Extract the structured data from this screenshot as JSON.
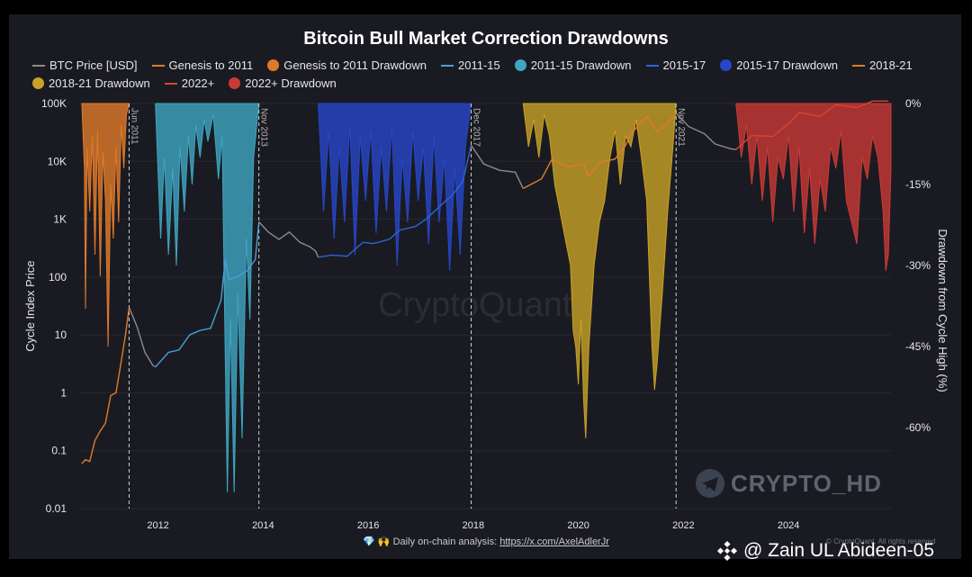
{
  "header": {
    "title": "Bitcoin Bull Market Correction Drawdowns"
  },
  "legend": [
    {
      "label": "BTC Price [USD]",
      "kind": "line",
      "color": "#8c8c8c"
    },
    {
      "label": "Genesis to 2011",
      "kind": "line",
      "color": "#e07a2b"
    },
    {
      "label": "Genesis to 2011 Drawdown",
      "kind": "dot",
      "color": "#e07a2b"
    },
    {
      "label": "2011-15",
      "kind": "line",
      "color": "#4a9fd6"
    },
    {
      "label": "2011-15 Drawdown",
      "kind": "dot",
      "color": "#3fa6c2"
    },
    {
      "label": "2015-17",
      "kind": "line",
      "color": "#2f62d6"
    },
    {
      "label": "2015-17 Drawdown",
      "kind": "dot",
      "color": "#2746c9"
    },
    {
      "label": "2018-21",
      "kind": "line",
      "color": "#e07a2b"
    },
    {
      "label": "2018-21 Drawdown",
      "kind": "dot",
      "color": "#c9a227"
    },
    {
      "label": "2022+",
      "kind": "line",
      "color": "#d6452f"
    },
    {
      "label": "2022+ Drawdown",
      "kind": "dot",
      "color": "#c93a36"
    }
  ],
  "chart_data": {
    "type": "line",
    "title": "Bitcoin Bull Market Correction Drawdowns",
    "ylabel": "Cycle Index Price",
    "y2label": "Drawdown from Cycle High (%)",
    "yscale": "log",
    "ylim": [
      0.01,
      100000
    ],
    "y_ticks": [
      0.01,
      0.1,
      1,
      10,
      100,
      1000,
      10000,
      100000
    ],
    "y_tick_labels": [
      "0.01",
      "0.1",
      "1",
      "10",
      "100",
      "1K",
      "10K",
      "100K"
    ],
    "y2lim": [
      -75,
      0
    ],
    "y2_ticks": [
      0,
      -15,
      -30,
      -45,
      -60
    ],
    "y2_tick_labels": [
      "0%",
      "-15%",
      "-30%",
      "-45%",
      "-60%"
    ],
    "xlim": [
      2010.5,
      2025.95
    ],
    "x_ticks": [
      2012,
      2014,
      2016,
      2018,
      2020,
      2022,
      2024
    ],
    "x_tick_labels": [
      "2012",
      "2014",
      "2016",
      "2018",
      "2020",
      "2022",
      "2024"
    ],
    "cycle_markers": [
      {
        "x": 2011.45,
        "label": "Jun 2011"
      },
      {
        "x": 2013.92,
        "label": "Nov 2013"
      },
      {
        "x": 2017.96,
        "label": "Dec 2017"
      },
      {
        "x": 2021.86,
        "label": "Nov 2021"
      }
    ],
    "price_series": [
      {
        "name": "Genesis to 2011",
        "color": "#e07a2b",
        "points": [
          [
            2010.55,
            0.06
          ],
          [
            2010.62,
            0.07
          ],
          [
            2010.7,
            0.065
          ],
          [
            2010.8,
            0.15
          ],
          [
            2010.9,
            0.22
          ],
          [
            2011.0,
            0.3
          ],
          [
            2011.1,
            0.9
          ],
          [
            2011.2,
            1.0
          ],
          [
            2011.3,
            3.5
          ],
          [
            2011.38,
            10
          ],
          [
            2011.45,
            30
          ]
        ]
      },
      {
        "name": "BTC Price [USD]",
        "color": "#8c8c8c",
        "points": [
          [
            2011.45,
            30
          ],
          [
            2011.6,
            14
          ],
          [
            2011.75,
            5
          ],
          [
            2011.9,
            3
          ],
          [
            2011.95,
            2.8
          ]
        ]
      },
      {
        "name": "2011-15",
        "color": "#4a9fd6",
        "points": [
          [
            2011.95,
            2.8
          ],
          [
            2012.2,
            5
          ],
          [
            2012.4,
            5.5
          ],
          [
            2012.6,
            10
          ],
          [
            2012.8,
            12
          ],
          [
            2013.0,
            13
          ],
          [
            2013.2,
            40
          ],
          [
            2013.28,
            200
          ],
          [
            2013.35,
            90
          ],
          [
            2013.5,
            100
          ],
          [
            2013.7,
            130
          ],
          [
            2013.85,
            200
          ],
          [
            2013.92,
            900
          ]
        ]
      },
      {
        "name": "BTC Price [USD]",
        "color": "#8c8c8c",
        "points": [
          [
            2013.92,
            900
          ],
          [
            2014.1,
            600
          ],
          [
            2014.3,
            450
          ],
          [
            2014.5,
            600
          ],
          [
            2014.7,
            400
          ],
          [
            2014.9,
            330
          ],
          [
            2015.0,
            280
          ],
          [
            2015.05,
            220
          ]
        ]
      },
      {
        "name": "2015-17",
        "color": "#2f62d6",
        "points": [
          [
            2015.05,
            220
          ],
          [
            2015.3,
            240
          ],
          [
            2015.6,
            230
          ],
          [
            2015.9,
            400
          ],
          [
            2016.1,
            380
          ],
          [
            2016.4,
            450
          ],
          [
            2016.6,
            650
          ],
          [
            2016.9,
            750
          ],
          [
            2017.1,
            1000
          ],
          [
            2017.4,
            1800
          ],
          [
            2017.6,
            2600
          ],
          [
            2017.8,
            4500
          ],
          [
            2017.96,
            19000
          ]
        ]
      },
      {
        "name": "BTC Price [USD]",
        "color": "#8c8c8c",
        "points": [
          [
            2017.96,
            19000
          ],
          [
            2018.2,
            9000
          ],
          [
            2018.5,
            7000
          ],
          [
            2018.8,
            6500
          ],
          [
            2018.95,
            3400
          ]
        ]
      },
      {
        "name": "2018-21",
        "color": "#e07a2b",
        "points": [
          [
            2018.95,
            3400
          ],
          [
            2019.3,
            5000
          ],
          [
            2019.5,
            11000
          ],
          [
            2019.8,
            8000
          ],
          [
            2020.1,
            9000
          ],
          [
            2020.2,
            5500
          ],
          [
            2020.4,
            9500
          ],
          [
            2020.7,
            11000
          ],
          [
            2020.9,
            19000
          ],
          [
            2021.0,
            30000
          ],
          [
            2021.3,
            60000
          ],
          [
            2021.5,
            33000
          ],
          [
            2021.7,
            45000
          ],
          [
            2021.86,
            68000
          ]
        ]
      },
      {
        "name": "BTC Price [USD]",
        "color": "#8c8c8c",
        "points": [
          [
            2021.86,
            68000
          ],
          [
            2022.1,
            40000
          ],
          [
            2022.4,
            30000
          ],
          [
            2022.6,
            20000
          ],
          [
            2022.9,
            16500
          ],
          [
            2023.0,
            16000
          ]
        ]
      },
      {
        "name": "2022+",
        "color": "#d6452f",
        "points": [
          [
            2023.0,
            16000
          ],
          [
            2023.3,
            28000
          ],
          [
            2023.7,
            27000
          ],
          [
            2024.0,
            45000
          ],
          [
            2024.2,
            70000
          ],
          [
            2024.6,
            60000
          ],
          [
            2024.9,
            95000
          ],
          [
            2025.3,
            85000
          ],
          [
            2025.6,
            110000
          ],
          [
            2025.9,
            110000
          ]
        ]
      }
    ],
    "drawdowns": [
      {
        "name": "Genesis to 2011 Drawdown",
        "color": "#e07a2b",
        "points": [
          [
            2010.55,
            0
          ],
          [
            2010.6,
            -12
          ],
          [
            2010.62,
            -38
          ],
          [
            2010.65,
            -8
          ],
          [
            2010.7,
            -20
          ],
          [
            2010.75,
            -6
          ],
          [
            2010.8,
            -28
          ],
          [
            2010.85,
            -5
          ],
          [
            2010.9,
            -32
          ],
          [
            2010.95,
            -9
          ],
          [
            2011.0,
            -18
          ],
          [
            2011.05,
            -45
          ],
          [
            2011.1,
            -15
          ],
          [
            2011.15,
            -25
          ],
          [
            2011.2,
            -8
          ],
          [
            2011.25,
            -22
          ],
          [
            2011.3,
            -4
          ],
          [
            2011.35,
            -12
          ],
          [
            2011.4,
            -2
          ],
          [
            2011.45,
            0
          ]
        ]
      },
      {
        "name": "2011-15 Drawdown",
        "color": "#3fa6c2",
        "points": [
          [
            2011.95,
            0
          ],
          [
            2012.05,
            -25
          ],
          [
            2012.12,
            -10
          ],
          [
            2012.2,
            -28
          ],
          [
            2012.28,
            -12
          ],
          [
            2012.35,
            -30
          ],
          [
            2012.42,
            -8
          ],
          [
            2012.5,
            -20
          ],
          [
            2012.58,
            -6
          ],
          [
            2012.65,
            -15
          ],
          [
            2012.72,
            -4
          ],
          [
            2012.8,
            -10
          ],
          [
            2012.88,
            -3
          ],
          [
            2012.95,
            -7
          ],
          [
            2013.05,
            -2
          ],
          [
            2013.15,
            -14
          ],
          [
            2013.22,
            -6
          ],
          [
            2013.28,
            -47
          ],
          [
            2013.32,
            -72
          ],
          [
            2013.38,
            -40
          ],
          [
            2013.45,
            -72
          ],
          [
            2013.52,
            -35
          ],
          [
            2013.6,
            -62
          ],
          [
            2013.68,
            -25
          ],
          [
            2013.75,
            -40
          ],
          [
            2013.82,
            -10
          ],
          [
            2013.88,
            -4
          ],
          [
            2013.92,
            0
          ]
        ]
      },
      {
        "name": "2015-17 Drawdown",
        "color": "#2746c9",
        "points": [
          [
            2015.05,
            0
          ],
          [
            2015.15,
            -20
          ],
          [
            2015.25,
            -5
          ],
          [
            2015.35,
            -25
          ],
          [
            2015.45,
            -8
          ],
          [
            2015.55,
            -22
          ],
          [
            2015.65,
            -4
          ],
          [
            2015.75,
            -28
          ],
          [
            2015.85,
            -6
          ],
          [
            2015.95,
            -18
          ],
          [
            2016.05,
            -5
          ],
          [
            2016.15,
            -24
          ],
          [
            2016.25,
            -8
          ],
          [
            2016.35,
            -20
          ],
          [
            2016.45,
            -4
          ],
          [
            2016.55,
            -30
          ],
          [
            2016.65,
            -10
          ],
          [
            2016.75,
            -22
          ],
          [
            2016.85,
            -5
          ],
          [
            2016.95,
            -18
          ],
          [
            2017.05,
            -8
          ],
          [
            2017.15,
            -26
          ],
          [
            2017.25,
            -6
          ],
          [
            2017.35,
            -22
          ],
          [
            2017.45,
            -10
          ],
          [
            2017.55,
            -31
          ],
          [
            2017.65,
            -12
          ],
          [
            2017.75,
            -28
          ],
          [
            2017.85,
            -8
          ],
          [
            2017.96,
            0
          ]
        ]
      },
      {
        "name": "2018-21 Drawdown",
        "color": "#c9a227",
        "points": [
          [
            2018.95,
            0
          ],
          [
            2019.05,
            -8
          ],
          [
            2019.15,
            -3
          ],
          [
            2019.25,
            -10
          ],
          [
            2019.35,
            -2
          ],
          [
            2019.45,
            -6
          ],
          [
            2019.55,
            -15
          ],
          [
            2019.65,
            -20
          ],
          [
            2019.75,
            -25
          ],
          [
            2019.85,
            -30
          ],
          [
            2019.9,
            -42
          ],
          [
            2019.95,
            -45
          ],
          [
            2020.0,
            -52
          ],
          [
            2020.05,
            -40
          ],
          [
            2020.1,
            -55
          ],
          [
            2020.14,
            -62
          ],
          [
            2020.2,
            -45
          ],
          [
            2020.3,
            -30
          ],
          [
            2020.4,
            -22
          ],
          [
            2020.5,
            -18
          ],
          [
            2020.6,
            -10
          ],
          [
            2020.7,
            -5
          ],
          [
            2020.8,
            -15
          ],
          [
            2020.9,
            -6
          ],
          [
            2021.0,
            -8
          ],
          [
            2021.1,
            -3
          ],
          [
            2021.2,
            -10
          ],
          [
            2021.3,
            -18
          ],
          [
            2021.4,
            -45
          ],
          [
            2021.45,
            -53
          ],
          [
            2021.5,
            -48
          ],
          [
            2021.6,
            -35
          ],
          [
            2021.7,
            -20
          ],
          [
            2021.8,
            -8
          ],
          [
            2021.86,
            0
          ]
        ]
      },
      {
        "name": "2022+ Drawdown",
        "color": "#c93a36",
        "points": [
          [
            2023.0,
            0
          ],
          [
            2023.1,
            -10
          ],
          [
            2023.2,
            -4
          ],
          [
            2023.3,
            -15
          ],
          [
            2023.4,
            -6
          ],
          [
            2023.5,
            -18
          ],
          [
            2023.6,
            -8
          ],
          [
            2023.7,
            -22
          ],
          [
            2023.8,
            -10
          ],
          [
            2023.9,
            -14
          ],
          [
            2024.0,
            -6
          ],
          [
            2024.1,
            -20
          ],
          [
            2024.2,
            -8
          ],
          [
            2024.3,
            -24
          ],
          [
            2024.4,
            -12
          ],
          [
            2024.5,
            -26
          ],
          [
            2024.6,
            -14
          ],
          [
            2024.7,
            -20
          ],
          [
            2024.8,
            -8
          ],
          [
            2024.9,
            -12
          ],
          [
            2025.0,
            -5
          ],
          [
            2025.1,
            -18
          ],
          [
            2025.2,
            -22
          ],
          [
            2025.3,
            -26
          ],
          [
            2025.4,
            -10
          ],
          [
            2025.5,
            -14
          ],
          [
            2025.6,
            -6
          ],
          [
            2025.7,
            -10
          ],
          [
            2025.8,
            -20
          ],
          [
            2025.85,
            -31
          ],
          [
            2025.9,
            -28
          ],
          [
            2025.95,
            -12
          ]
        ]
      }
    ]
  },
  "footer": {
    "prefix": "💎 🙌 Daily on-chain analysis:",
    "link": "https://x.com/AxelAdlerJr",
    "credit": "© CryptoQuant. All rights reserved"
  },
  "watermarks": {
    "crypto_hd": "CRYPTO_HD",
    "cryptoquant": "CryptoQuant",
    "user": "@ Zain UL Abideen-05"
  }
}
